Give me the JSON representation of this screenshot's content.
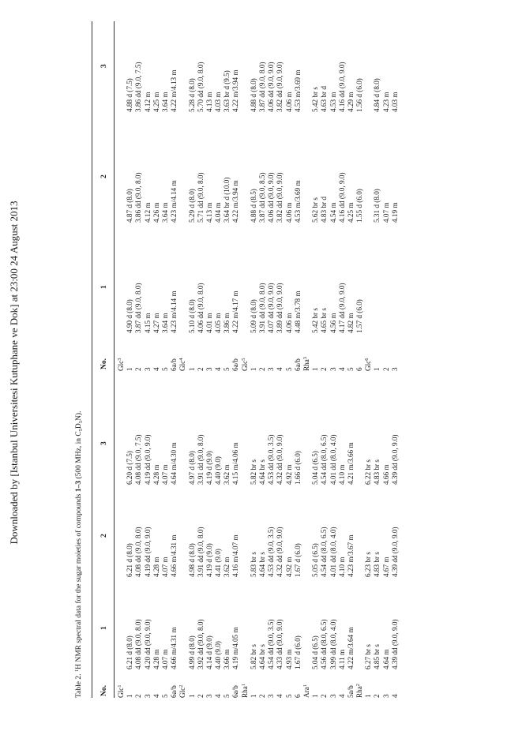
{
  "page": {
    "watermark": "Downloaded by [Istanbul Universitesi Kutuphane ve Dok] at 23:00 24 August 2013",
    "caption_a": "Table 2.  ",
    "caption_b": "H NMR spectral data for the sugar moieties of compounds ",
    "caption_c": "1–3",
    "caption_d": " (500 MHz, in C",
    "caption_e": "D",
    "caption_f": "N)."
  },
  "headers": [
    "No.",
    "1",
    "2",
    "3",
    "No.",
    "1",
    "2",
    "3"
  ],
  "left": {
    "no": [
      "Glc|1",
      "1",
      "2",
      "3",
      "4",
      "5",
      "6a/b",
      "Glc|2",
      "1",
      "2",
      "3",
      "4",
      "5",
      "6a/b",
      "Rha|1",
      "1",
      "2",
      "3",
      "4",
      "5",
      "6",
      "Ara|1",
      "1",
      "2",
      "3",
      "4",
      "5a/b",
      "Rha|2",
      "1",
      "2",
      "3",
      "4"
    ],
    "c1": [
      "",
      "6.21 d (8.0)",
      "4.08 dd (9.0, 8.0)",
      "4.20 dd (9.0, 9.0)",
      "4.28 m",
      "4.07 m",
      "4.66 m/4.31 m",
      "",
      "4.99 d (8.0)",
      "3.92 dd (9.0, 8.0)",
      "4.14 d (9.0)",
      "4.40 (9.0)",
      "3.66 m",
      "4.19 m/4.05 m",
      "",
      "5.82 br s",
      "4.64 br s",
      "4.54 dd (9.0, 3.5)",
      "4.33 dd (9.0, 9.0)",
      "4.93 m",
      "1.67 d (6.0)",
      "",
      "5.04 d (6.5)",
      "4.56 dd (8.0, 6.5)",
      "3.99 dd (8.0, 4.0)",
      "4.11 m",
      "4.22 m/3.64 m",
      "",
      "6.27 br s",
      "4.85 br s",
      "4.64 m",
      "4.39 dd (9.0, 9.0)"
    ],
    "c2": [
      "",
      "6.21 d (8.0)",
      "4.08 dd (9.0, 8.0)",
      "4.19 dd (9.0, 9.0)",
      "4.28 m",
      "4.07 m",
      "4.66 m/4.31 m",
      "",
      "4.98 d (8.0)",
      "3.91 dd (9.0, 8.0)",
      "4.19 d (9.0)",
      "4.41 (9.0)",
      "3.62 m",
      "4.16 m/4.07 m",
      "",
      "5.83 br s",
      "4.64 br s",
      "4.53 dd (9.0, 3.5)",
      "4.32 dd (9.0, 9.0)",
      "4.92 m",
      "1.67 d (6.0)",
      "",
      "5.05 d (6.5)",
      "4.54 dd (8.0, 6.5)",
      "4.01 dd (8.0, 4.0)",
      "4.10 m",
      "4.23 m/3.67 m",
      "",
      "6.23 br s",
      "4.83 br s",
      "4.67 m",
      "4.39 dd (9.0, 9.0)"
    ],
    "c3": [
      "",
      "6.20 d (7.5)",
      "4.08 dd (9.0, 7.5)",
      "4.19 dd (9.0, 9.0)",
      "4.28 m",
      "4.07 m",
      "4.64 m/4.30 m",
      "",
      "4.97 d (8.0)",
      "3.91 dd (9.0, 8.0)",
      "4.19 d (9.0)",
      "4.40 (9.0)",
      "3.62 m",
      "4.15 m/4.06 m",
      "",
      "5.82 br s",
      "4.64 br s",
      "4.53 dd (9.0, 3.5)",
      "4.32 dd (9.0, 9.0)",
      "4.92 m",
      "1.66 d (6.0)",
      "",
      "5.04 d (6.5)",
      "4.54 dd (8.0, 6.5)",
      "4.01 dd (8.0, 4.0)",
      "4.10 m",
      "4.21 m/3.66 m",
      "",
      "6.22 br s",
      "4.83 br s",
      "4.66 m",
      "4.39 dd (9.0, 9.0)"
    ]
  },
  "right": {
    "no": [
      "Glc|3",
      "1",
      "2",
      "3",
      "4",
      "5",
      "6a/b",
      "Glc|4",
      "1",
      "2",
      "3",
      "4",
      "5",
      "6a/b",
      "Glc|5",
      "1",
      "2",
      "3",
      "4",
      "5",
      "6a/b",
      "Rha|3",
      "1",
      "2",
      "3",
      "4",
      "5",
      "6",
      "Glc|6",
      "1",
      "2",
      "3"
    ],
    "c1": [
      "",
      "4.90 d (8.0)",
      "3.87 dd (9.0, 8.0)",
      "4.15 m",
      "4.27 m",
      "3.64 m",
      "4.23 m/4.14 m",
      "",
      "5.10 d (8.0)",
      "4.06 dd (9.0, 8.0)",
      "4.01 m",
      "4.05 m",
      "3.86 m",
      "4.22 m/4.17 m",
      "",
      "5.09 d (8.0)",
      "3.91 dd (9.0, 8.0)",
      "4.07 dd (9.0, 9.0)",
      "3.89 dd (9.0, 9.0)",
      "4.06 m",
      "4.48 m/3.78 m",
      "",
      "5.42 br s",
      "4.65 br s",
      "4.56 m",
      "4.17 dd (9.0, 9.0)",
      "4.82 m",
      "1.57 d (6.0)",
      "",
      "",
      "",
      ""
    ],
    "c2": [
      "",
      "4.87 d (8.0)",
      "3.86 dd (9.0, 8.0)",
      "4.12 m",
      "4.26 m",
      "3.64 m",
      "4.23 m/4.14 m",
      "",
      "5.29 d (8.0)",
      "5.71 dd (9.0, 8.0)",
      "4.13 m",
      "4.04 m",
      "3.64 br d (10.0)",
      "4.22 m/3.94 m",
      "",
      "4.88 d (8.5)",
      "3.87 dd (9.0, 8.5)",
      "4.06 dd (9.0, 9.0)",
      "3.82 dd (9.0, 9.0)",
      "4.06 m",
      "4.53 m/3.69 m",
      "",
      "5.62 br s",
      "4.83 br d",
      "4.54 m",
      "4.16 dd (9.0, 9.0)",
      "4.25 m",
      "1.55 d (6.0)",
      "",
      "5.31 d (8.0)",
      "4.07 m",
      "4.19 m"
    ],
    "c3": [
      "",
      "4.88 d (7.5)",
      "3.86 dd (9.0, 7.5)",
      "4.12 m",
      "4.25 m",
      "3.64 m",
      "4.22 m/4.13 m",
      "",
      "5.28 d (8.0)",
      "5.70 dd (9.0, 8.0)",
      "4.13 m",
      "4.03 m",
      "3.63 br d (9.5)",
      "4.22 m/3.94 m",
      "",
      "4.88 d (8.0)",
      "3.87 dd (9.0, 8.0)",
      "4.06 dd (9.0, 9.0)",
      "3.82 dd (9.0, 9.0)",
      "4.06 m",
      "4.53 m/3.69 m",
      "",
      "5.42 br s",
      "4.63 br d",
      "4.53 m",
      "4.16 dd (9.0, 9.0)",
      "4.29 m",
      "1.56 d (6.0)",
      "",
      "4.84 d (8.0)",
      "4.23 m",
      "4.03 m"
    ]
  }
}
